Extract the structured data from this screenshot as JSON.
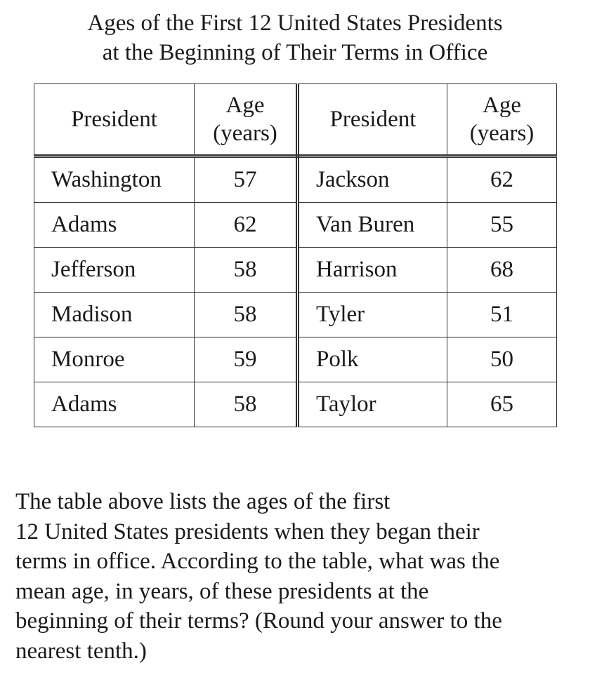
{
  "title": {
    "line1": "Ages of the First 12 United States Presidents",
    "line2": "at the Beginning of Their Terms in Office"
  },
  "table": {
    "headers": {
      "president": "President",
      "age_line1": "Age",
      "age_line2": "(years)"
    },
    "rows": [
      {
        "left_name": "Washington",
        "left_age": "57",
        "right_name": "Jackson",
        "right_age": "62"
      },
      {
        "left_name": "Adams",
        "left_age": "62",
        "right_name": "Van Buren",
        "right_age": "55"
      },
      {
        "left_name": "Jefferson",
        "left_age": "58",
        "right_name": "Harrison",
        "right_age": "68"
      },
      {
        "left_name": "Madison",
        "left_age": "58",
        "right_name": "Tyler",
        "right_age": "51"
      },
      {
        "left_name": "Monroe",
        "left_age": "59",
        "right_name": "Polk",
        "right_age": "50"
      },
      {
        "left_name": "Adams",
        "left_age": "58",
        "right_name": "Taylor",
        "right_age": "65"
      }
    ]
  },
  "question": {
    "lines": [
      "The table above lists the ages of the first",
      "12 United States presidents when they began their",
      "terms in office.  According to the table, what was the",
      "mean age, in years, of these presidents at the",
      "beginning of their terms? (Round your answer to the",
      "nearest tenth.)"
    ]
  }
}
